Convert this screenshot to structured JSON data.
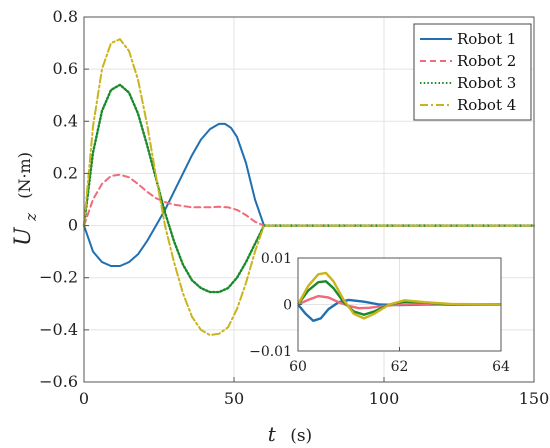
{
  "chart_data": {
    "type": "line",
    "xlabel": {
      "var": "t",
      "unit": "(s)"
    },
    "ylabel": {
      "var": "U",
      "sub": "z",
      "unit": "(N·m)"
    },
    "xlim": [
      0,
      150
    ],
    "ylim": [
      -0.6,
      0.8
    ],
    "xticks": [
      0,
      50,
      100,
      150
    ],
    "yticks": [
      -0.6,
      -0.4,
      -0.2,
      0,
      0.2,
      0.4,
      0.6,
      0.8
    ],
    "grid": true,
    "legend_position": "top-right",
    "series": [
      {
        "name": "Robot 1",
        "color": "#1f6fb2",
        "dash": "solid",
        "x": [
          0,
          3,
          6,
          9,
          12,
          15,
          18,
          21,
          24,
          27,
          30,
          33,
          36,
          39,
          42,
          45,
          47,
          49,
          51,
          54,
          57,
          60,
          63,
          150
        ],
        "y": [
          0,
          -0.1,
          -0.14,
          -0.155,
          -0.155,
          -0.14,
          -0.11,
          -0.06,
          0,
          0.06,
          0.13,
          0.2,
          0.27,
          0.33,
          0.37,
          0.39,
          0.39,
          0.375,
          0.34,
          0.24,
          0.1,
          0,
          0,
          0
        ]
      },
      {
        "name": "Robot 2",
        "color": "#f06a7a",
        "dash": "dashed",
        "x": [
          0,
          3,
          6,
          9,
          12,
          15,
          18,
          21,
          24,
          27,
          30,
          33,
          36,
          39,
          42,
          45,
          48,
          51,
          54,
          57,
          60,
          63,
          150
        ],
        "y": [
          0,
          0.1,
          0.16,
          0.19,
          0.195,
          0.185,
          0.16,
          0.13,
          0.105,
          0.09,
          0.08,
          0.075,
          0.07,
          0.07,
          0.07,
          0.072,
          0.07,
          0.06,
          0.04,
          0.015,
          0,
          0,
          0
        ]
      },
      {
        "name": "Robot 3",
        "color": "#1a8a2a",
        "dash": "dotted",
        "x": [
          0,
          3,
          6,
          9,
          12,
          15,
          18,
          21,
          24,
          27,
          30,
          33,
          36,
          39,
          42,
          45,
          48,
          51,
          54,
          57,
          60,
          63,
          150
        ],
        "y": [
          0,
          0.28,
          0.44,
          0.52,
          0.54,
          0.51,
          0.43,
          0.31,
          0.18,
          0.05,
          -0.06,
          -0.15,
          -0.21,
          -0.24,
          -0.255,
          -0.255,
          -0.24,
          -0.2,
          -0.14,
          -0.07,
          0,
          0,
          0
        ]
      },
      {
        "name": "Robot 4",
        "color": "#c9b41c",
        "dash": "dashdot",
        "x": [
          0,
          3,
          6,
          9,
          12,
          15,
          18,
          21,
          24,
          27,
          30,
          33,
          36,
          39,
          42,
          45,
          48,
          51,
          54,
          57,
          60,
          63,
          150
        ],
        "y": [
          0,
          0.38,
          0.6,
          0.7,
          0.715,
          0.67,
          0.56,
          0.39,
          0.19,
          0,
          -0.14,
          -0.26,
          -0.35,
          -0.4,
          -0.42,
          -0.415,
          -0.39,
          -0.32,
          -0.22,
          -0.1,
          0,
          0,
          0
        ]
      }
    ],
    "inset": {
      "xlim": [
        60,
        64
      ],
      "ylim": [
        -0.01,
        0.01
      ],
      "xticks": [
        60,
        62,
        64
      ],
      "yticks": [
        -0.01,
        0,
        0.01
      ],
      "ytick_labels": [
        "−0.01",
        "0",
        "0.01"
      ],
      "series": [
        {
          "name": "Robot 1",
          "x": [
            60,
            60.15,
            60.3,
            60.45,
            60.6,
            60.8,
            61.0,
            61.3,
            61.6,
            62.0,
            62.5,
            63,
            64
          ],
          "y": [
            0,
            -0.002,
            -0.0035,
            -0.003,
            -0.001,
            0.0005,
            0.001,
            0.0006,
            0,
            -0.0001,
            0,
            0,
            0
          ]
        },
        {
          "name": "Robot 2",
          "x": [
            60,
            60.2,
            60.4,
            60.6,
            60.8,
            61.0,
            61.2,
            61.4,
            61.7,
            62.0,
            62.5,
            63,
            64
          ],
          "y": [
            0,
            0.001,
            0.0018,
            0.0015,
            0.0005,
            -0.0003,
            -0.0008,
            -0.0007,
            -0.0003,
            0,
            0.0001,
            0,
            0
          ]
        },
        {
          "name": "Robot 3",
          "x": [
            60,
            60.2,
            60.4,
            60.55,
            60.7,
            60.9,
            61.1,
            61.3,
            61.5,
            61.8,
            62.1,
            62.5,
            63,
            64
          ],
          "y": [
            0,
            0.003,
            0.0048,
            0.005,
            0.0035,
            0.0005,
            -0.0015,
            -0.0022,
            -0.0015,
            0,
            0.0006,
            0.0004,
            0,
            0
          ]
        },
        {
          "name": "Robot 4",
          "x": [
            60,
            60.2,
            60.4,
            60.55,
            60.7,
            60.9,
            61.1,
            61.3,
            61.5,
            61.8,
            62.1,
            62.5,
            63,
            64
          ],
          "y": [
            0,
            0.004,
            0.0065,
            0.0068,
            0.005,
            0.001,
            -0.002,
            -0.003,
            -0.002,
            0,
            0.0009,
            0.0005,
            0.0001,
            0
          ]
        }
      ]
    }
  }
}
